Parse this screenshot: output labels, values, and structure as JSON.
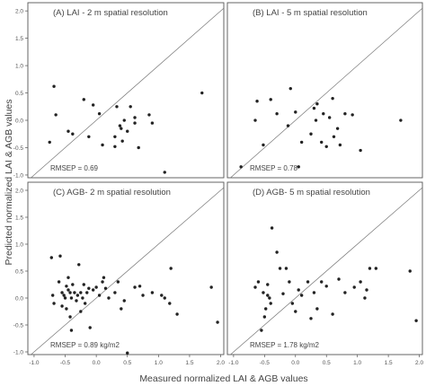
{
  "figure": {
    "xlabel": "Measured normalized LAI & AGB values",
    "ylabel": "Predicted normalized LAI & AGB values"
  },
  "chart_data": [
    {
      "type": "scatter",
      "title": "(A)      LAI - 2 m spatial resolution",
      "annotation": "RMSEP = 0.69",
      "xlim": [
        -1.1,
        2.05
      ],
      "ylim": [
        -1.05,
        2.15
      ],
      "x_ticks": [],
      "y_ticks": [
        "-1.0",
        "-0.5",
        "0.0",
        "0.5",
        "1.0",
        "1.5",
        "2.0"
      ],
      "reference_line": "1:1",
      "x": [
        -0.68,
        -0.65,
        -0.75,
        -0.45,
        -0.38,
        -0.2,
        -0.12,
        -0.05,
        0.05,
        0.1,
        0.3,
        0.3,
        0.33,
        0.4,
        0.38,
        0.42,
        0.45,
        0.5,
        0.55,
        0.62,
        0.62,
        0.68,
        0.85,
        0.9,
        1.1,
        1.7
      ],
      "y": [
        0.62,
        0.1,
        -0.4,
        -0.2,
        -0.25,
        0.38,
        -0.3,
        0.28,
        0.12,
        -0.45,
        -0.3,
        -0.48,
        0.25,
        -0.15,
        -0.1,
        -0.38,
        0.0,
        -0.2,
        0.25,
        -0.05,
        0.05,
        -0.5,
        0.1,
        -0.05,
        -0.95,
        0.5
      ]
    },
    {
      "type": "scatter",
      "title": "(B)      LAI - 5 m spatial resolution",
      "annotation": "RMSEP = 0.78",
      "xlim": [
        -1.1,
        2.05
      ],
      "ylim": [
        -1.05,
        2.15
      ],
      "x_ticks": [],
      "y_ticks": [],
      "reference_line": "1:1",
      "x": [
        -0.88,
        -0.65,
        -0.62,
        -0.52,
        -0.4,
        -0.3,
        -0.12,
        -0.08,
        0.0,
        0.05,
        0.1,
        0.25,
        0.3,
        0.33,
        0.35,
        0.42,
        0.45,
        0.5,
        0.55,
        0.6,
        0.62,
        0.68,
        0.72,
        0.8,
        0.92,
        1.05,
        1.7
      ],
      "y": [
        -0.85,
        0.0,
        0.35,
        -0.45,
        0.38,
        0.12,
        -0.1,
        0.58,
        0.15,
        -0.85,
        -0.4,
        -0.25,
        0.22,
        0.0,
        0.3,
        -0.4,
        0.12,
        -0.48,
        0.05,
        0.4,
        -0.3,
        -0.15,
        -0.45,
        0.12,
        0.1,
        -0.55,
        0.0
      ]
    },
    {
      "type": "scatter",
      "title": "(C)      AGB- 2 m spatial resolution",
      "annotation": "RMSEP = 0.89 kg/m2",
      "xlim": [
        -1.1,
        2.05
      ],
      "ylim": [
        -1.05,
        2.15
      ],
      "x_ticks": [
        "-1.0",
        "-0.5",
        "0.0",
        "0.5",
        "1.0",
        "1.5",
        "2.0"
      ],
      "y_ticks": [
        "-1.0",
        "-0.5",
        "0.0",
        "0.5",
        "1.0",
        "1.5",
        "2.0"
      ],
      "reference_line": "1:1",
      "x": [
        -0.72,
        -0.7,
        -0.68,
        -0.6,
        -0.58,
        -0.55,
        -0.55,
        -0.52,
        -0.5,
        -0.48,
        -0.48,
        -0.45,
        -0.45,
        -0.42,
        -0.42,
        -0.4,
        -0.4,
        -0.38,
        -0.35,
        -0.32,
        -0.3,
        -0.28,
        -0.25,
        -0.25,
        -0.22,
        -0.2,
        -0.18,
        -0.15,
        -0.12,
        -0.1,
        -0.05,
        0.0,
        0.05,
        0.1,
        0.12,
        0.15,
        0.2,
        0.3,
        0.35,
        0.4,
        0.45,
        0.5,
        0.62,
        0.7,
        0.75,
        0.9,
        1.05,
        1.1,
        1.18,
        1.2,
        1.3,
        1.85,
        1.95
      ],
      "y": [
        0.75,
        0.05,
        -0.1,
        0.3,
        0.78,
        -0.15,
        0.1,
        0.05,
        0.0,
        0.22,
        -0.2,
        0.38,
        0.15,
        -0.35,
        0.1,
        0.0,
        -0.6,
        0.25,
        0.1,
        -0.05,
        0.05,
        0.62,
        0.1,
        -0.25,
        0.0,
        0.25,
        -0.1,
        0.1,
        0.18,
        -0.55,
        0.15,
        0.2,
        0.05,
        0.3,
        0.38,
        0.18,
        0.0,
        0.1,
        0.3,
        -0.2,
        -0.05,
        -1.02,
        0.2,
        0.22,
        0.05,
        0.1,
        0.05,
        0.0,
        -0.1,
        0.55,
        -0.3,
        0.2,
        -0.45
      ]
    },
    {
      "type": "scatter",
      "title": "(D)      AGB- 5 m spatial resolution",
      "annotation": "RMSEP = 1.78 kg/m2",
      "xlim": [
        -1.1,
        2.05
      ],
      "ylim": [
        -1.05,
        2.15
      ],
      "x_ticks": [
        "-1.0",
        "-0.5",
        "0.0",
        "0.5",
        "1.0",
        "1.5",
        "2.0"
      ],
      "y_ticks": [],
      "reference_line": "1:1",
      "x": [
        -0.65,
        -0.6,
        -0.55,
        -0.52,
        -0.5,
        -0.48,
        -0.45,
        -0.45,
        -0.42,
        -0.4,
        -0.38,
        -0.3,
        -0.25,
        -0.2,
        -0.15,
        -0.1,
        -0.05,
        0.0,
        0.05,
        0.1,
        0.2,
        0.25,
        0.3,
        0.35,
        0.42,
        0.5,
        0.6,
        0.7,
        0.8,
        0.95,
        1.05,
        1.12,
        1.15,
        1.2,
        1.3,
        1.85,
        1.95
      ],
      "y": [
        0.2,
        0.3,
        -0.6,
        0.1,
        -0.35,
        -0.2,
        0.05,
        0.25,
        0.0,
        -0.1,
        1.3,
        0.85,
        0.55,
        0.08,
        0.55,
        0.3,
        -0.1,
        -0.25,
        0.15,
        0.05,
        0.3,
        -0.38,
        0.1,
        -0.2,
        0.3,
        0.22,
        -0.3,
        0.35,
        0.1,
        0.2,
        0.3,
        0.0,
        0.15,
        0.55,
        0.55,
        0.5,
        -0.42
      ]
    }
  ]
}
